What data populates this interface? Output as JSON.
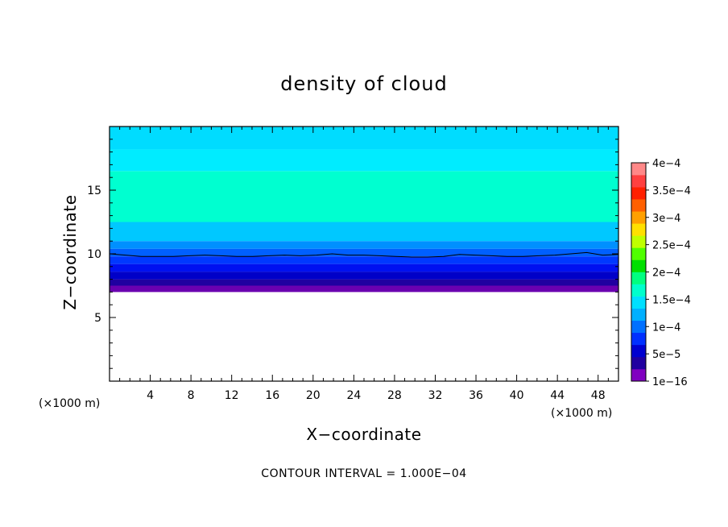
{
  "chart_data": {
    "type": "heatmap",
    "title": "density of cloud",
    "xlabel": "X−coordinate",
    "ylabel": "Z−coordinate",
    "x_unit": "(×1000 m)",
    "y_unit": "(×1000 m)",
    "xlim": [
      0,
      50
    ],
    "ylim": [
      0,
      20
    ],
    "x_ticks": [
      4,
      8,
      12,
      16,
      20,
      24,
      28,
      32,
      36,
      40,
      44,
      48
    ],
    "y_ticks": [
      5,
      10,
      15
    ],
    "x_tick_labels": [
      "4",
      "8",
      "12",
      "16",
      "20",
      "24",
      "28",
      "32",
      "36",
      "40",
      "44",
      "48"
    ],
    "y_tick_labels": [
      "5",
      "10",
      "15"
    ],
    "contour_interval_text": "CONTOUR INTERVAL = 1.000E−04",
    "colorbar": {
      "labels": [
        "1e−16",
        "5e−5",
        "1e−4",
        "1.5e−4",
        "2e−4",
        "2.5e−4",
        "3e−4",
        "3.5e−4",
        "4e−4"
      ],
      "level_colors": [
        "#8000c0",
        "#2000a0",
        "#0000d0",
        "#0030ff",
        "#0070ff",
        "#00b0ff",
        "#00e0ff",
        "#00ffcc",
        "#00ff80",
        "#00e000",
        "#50ff00",
        "#c0ff00",
        "#ffe000",
        "#ffa000",
        "#ff6000",
        "#ff2000",
        "#ff4040",
        "#ff8888"
      ]
    },
    "layers": [
      {
        "z_bottom": 7.0,
        "z_top": 7.5,
        "value": "1e-16 to 2.5e-5",
        "color": "#6a00b0"
      },
      {
        "z_bottom": 7.5,
        "z_top": 8.0,
        "value": "2.5e-5 to 5e-5",
        "color": "#2000a0"
      },
      {
        "z_bottom": 8.0,
        "z_top": 8.6,
        "value": "5e-5 to 6e-5",
        "color": "#0000c8"
      },
      {
        "z_bottom": 8.6,
        "z_top": 9.2,
        "value": "6e-5 to 7e-5",
        "color": "#0010f0"
      },
      {
        "z_bottom": 9.2,
        "z_top": 9.8,
        "value": "7e-5 to 8e-5",
        "color": "#0038ff"
      },
      {
        "z_bottom": 9.8,
        "z_top": 10.4,
        "value": "8e-5 to 9e-5",
        "color": "#0060ff"
      },
      {
        "z_bottom": 10.4,
        "z_top": 11.0,
        "value": "9e-5 to 1e-4",
        "color": "#0090ff"
      },
      {
        "z_bottom": 11.0,
        "z_top": 12.5,
        "value": "1e-4 to 1.25e-4",
        "color": "#00c8ff"
      },
      {
        "z_bottom": 12.5,
        "z_top": 16.5,
        "value": "1.25e-4 to 1.5e-4",
        "color": "#00ffd0"
      },
      {
        "z_bottom": 16.5,
        "z_top": 18.2,
        "value": "1e-4 to 1.25e-4",
        "color": "#00ecff"
      },
      {
        "z_bottom": 18.2,
        "z_top": 20.0,
        "value": "9e-5 to 1e-4",
        "color": "#00dcff"
      }
    ],
    "contour_line_z": [
      10.0,
      9.9,
      9.8,
      9.8,
      9.8,
      9.85,
      9.9,
      9.85,
      9.8,
      9.8,
      9.85,
      9.9,
      9.85,
      9.9,
      10.0,
      9.9,
      9.9,
      9.85,
      9.8,
      9.75,
      9.75,
      9.8,
      9.95,
      9.9,
      9.85,
      9.8,
      9.8,
      9.85,
      9.9,
      10.0,
      10.1,
      9.9,
      9.95
    ]
  }
}
